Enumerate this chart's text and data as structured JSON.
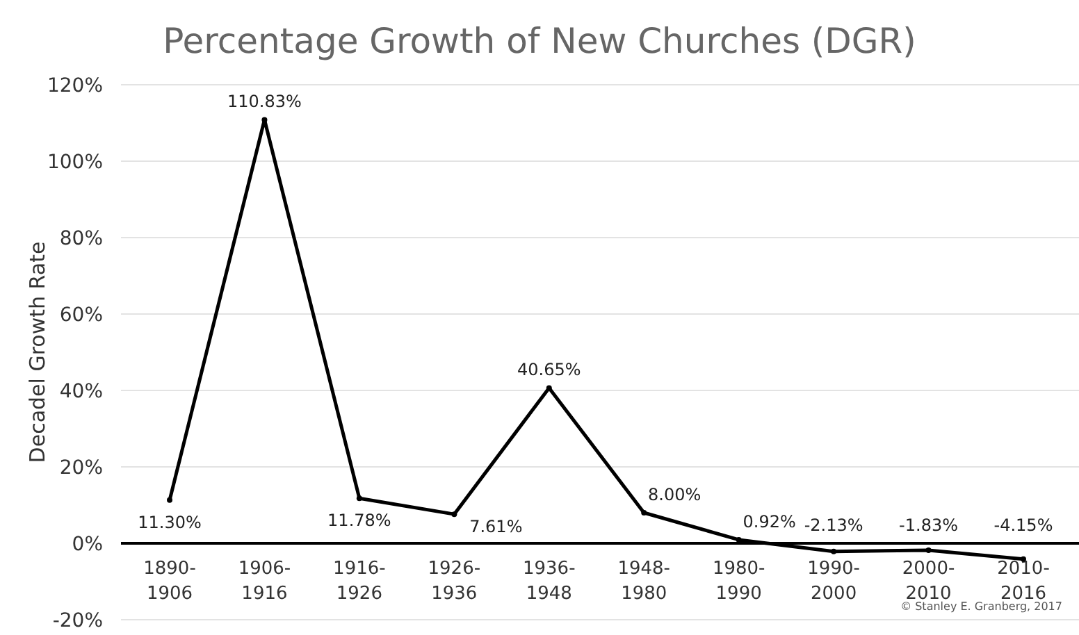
{
  "chart_data": {
    "type": "line",
    "title": "Percentage Growth of New Churches (DGR)",
    "ylabel": "Decadel Growth Rate",
    "categories": [
      "1890-1906",
      "1906-1916",
      "1916-1926",
      "1926-1936",
      "1936-1948",
      "1948-1980",
      "1980-1990",
      "1990-2000",
      "2000-2010",
      "2010-2016"
    ],
    "series": [
      {
        "color": "#000000",
        "values": [
          11.3,
          110.83,
          11.78,
          7.61,
          40.65,
          8.0,
          0.92,
          -2.13,
          -1.83,
          -4.15
        ],
        "value_labels": [
          "11.30%",
          "110.83%",
          "11.78%",
          "7.61%",
          "40.65%",
          "8.00%",
          "0.92%",
          "-2.13%",
          "-1.83%",
          "-4.15%"
        ]
      }
    ],
    "ylim": [
      -20,
      120
    ],
    "yticks": [
      {
        "value": -20,
        "label": "-20%"
      },
      {
        "value": 0,
        "label": "0%"
      },
      {
        "value": 20,
        "label": "20%"
      },
      {
        "value": 40,
        "label": "40%"
      },
      {
        "value": 60,
        "label": "60%"
      },
      {
        "value": 80,
        "label": "80%"
      },
      {
        "value": 100,
        "label": "100%"
      },
      {
        "value": 120,
        "label": "120%"
      }
    ],
    "grid": "y",
    "marker": "circle",
    "line_style": "solid",
    "annotations": [
      "© Stanley E. Granberg, 2017"
    ]
  }
}
